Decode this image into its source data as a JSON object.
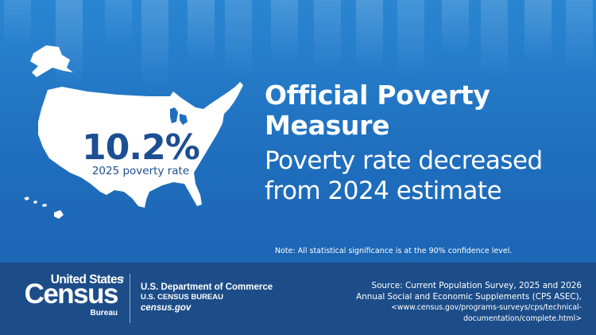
{
  "headline": {
    "rate_value": "10.2%",
    "rate_label": "2025 poverty rate",
    "title_line1": "Official Poverty",
    "title_line2": "Measure",
    "subtitle_line1": "Poverty rate decreased",
    "subtitle_line2": "from 2024 estimate"
  },
  "note": "Note: All statistical significance is at the 90% confidence level.",
  "footer": {
    "logo_line1": "United States",
    "logo_registered": "®",
    "logo_line2": "Census",
    "logo_line3": "Bureau",
    "department": "U.S. Department of Commerce",
    "bureau": "U.S. CENSUS BUREAU",
    "website": "census.gov",
    "source_line1": "Source: Current Population Survey, 2025 and 2026",
    "source_line2": "Annual Social and Economic Supplements (CPS ASEC),",
    "source_line3": "<www.census.gov/programs-surveys/cps/technical-",
    "source_line4": "documentation/complete.html>"
  },
  "colors": {
    "background_top": "#2a86d2",
    "background_bottom": "#1a5fae",
    "footer": "#1c4d89",
    "rate_text": "#1c4f92",
    "map_fill": "#ffffff"
  },
  "icons": [
    "us-map-icon",
    "census-logo-icon"
  ]
}
